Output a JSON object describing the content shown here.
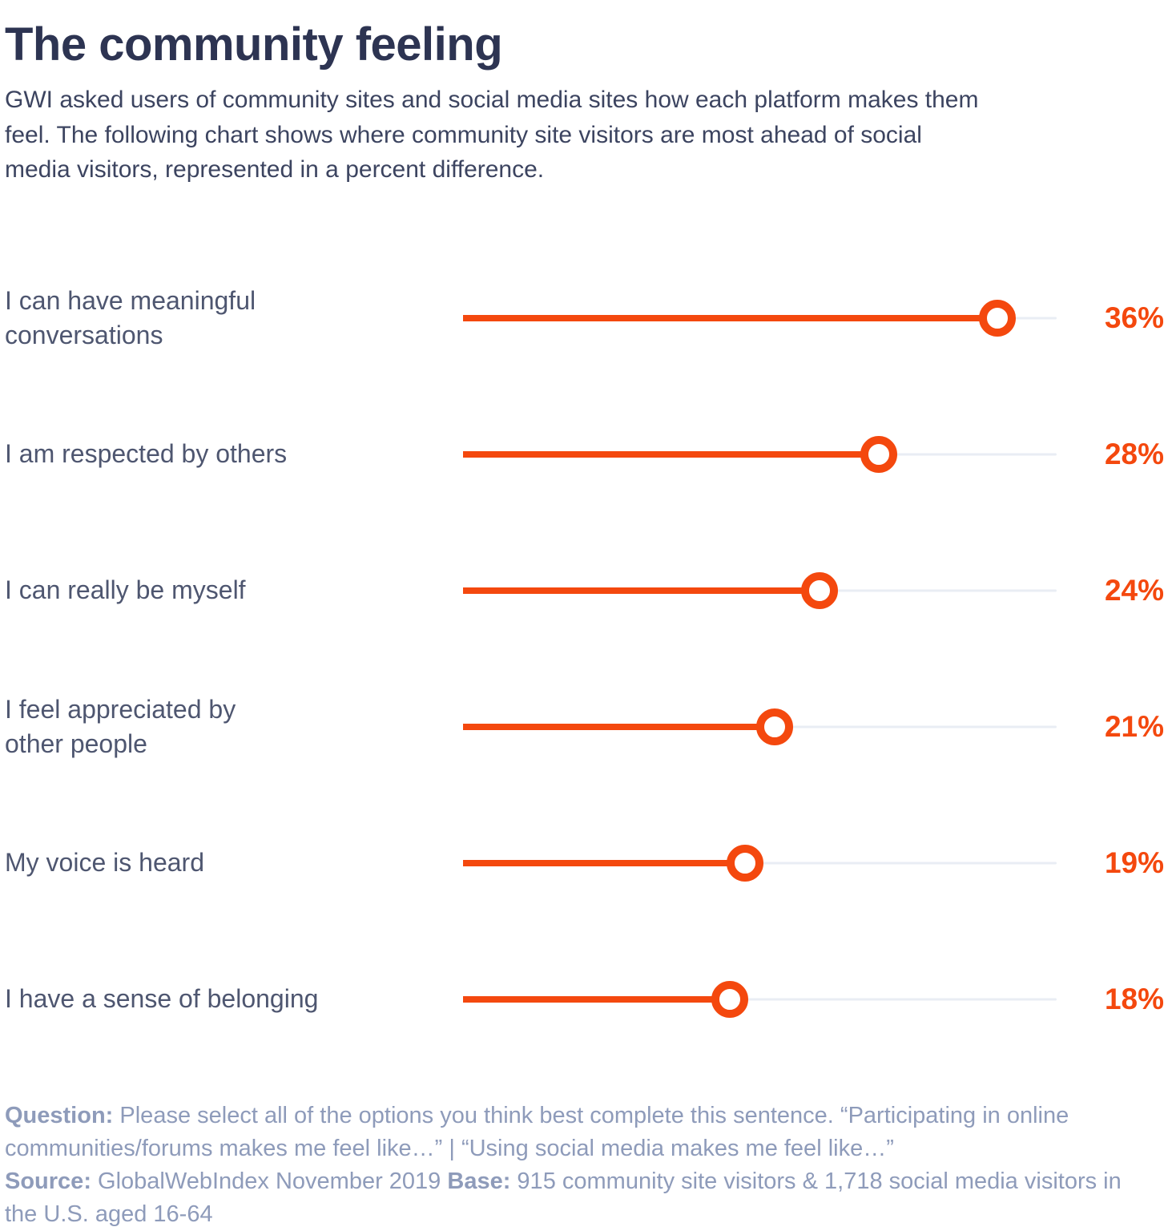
{
  "page": {
    "title": "The community feeling",
    "subtitle": "GWI asked users of community sites and social media sites how each platform makes them\nfeel. The following chart shows where community site visitors are most ahead of social\nmedia visitors, represented in a percent difference."
  },
  "chart_data": {
    "type": "lollipop-bar",
    "title": "The community feeling",
    "categories": [
      "I can have meaningful conversations",
      "I am respected by others",
      "I can really be myself",
      "I feel appreciated by other people",
      "My voice is heard",
      "I have a sense of belonging"
    ],
    "values": [
      36,
      28,
      24,
      21,
      19,
      18
    ],
    "unit": "%",
    "xlim": [
      0,
      40
    ],
    "grid": "off",
    "legend": "none",
    "accent_color": "#f4480e",
    "track_color": "#e9edf4",
    "rows": [
      {
        "label": "I can have meaningful\nconversations",
        "value": 36,
        "value_label": "36%"
      },
      {
        "label": "I am respected by others",
        "value": 28,
        "value_label": "28%"
      },
      {
        "label": "I can really be myself",
        "value": 24,
        "value_label": "24%"
      },
      {
        "label": "I feel appreciated by\nother people",
        "value": 21,
        "value_label": "21%"
      },
      {
        "label": "My voice is heard",
        "value": 19,
        "value_label": "19%"
      },
      {
        "label": "I have a sense of belonging",
        "value": 18,
        "value_label": "18%"
      }
    ]
  },
  "footer": {
    "question_label": "Question:",
    "question_text": " Please select all of the options you think best complete this sentence. “Participating in online communities/forums makes me feel like…” | “Using social media makes me feel like…”",
    "source_label": "Source:",
    "source_text": " GlobalWebIndex November 2019 ",
    "base_label": "Base:",
    "base_text": " 915 community site visitors & 1,718 social media visitors in the U.S. aged 16-64"
  }
}
